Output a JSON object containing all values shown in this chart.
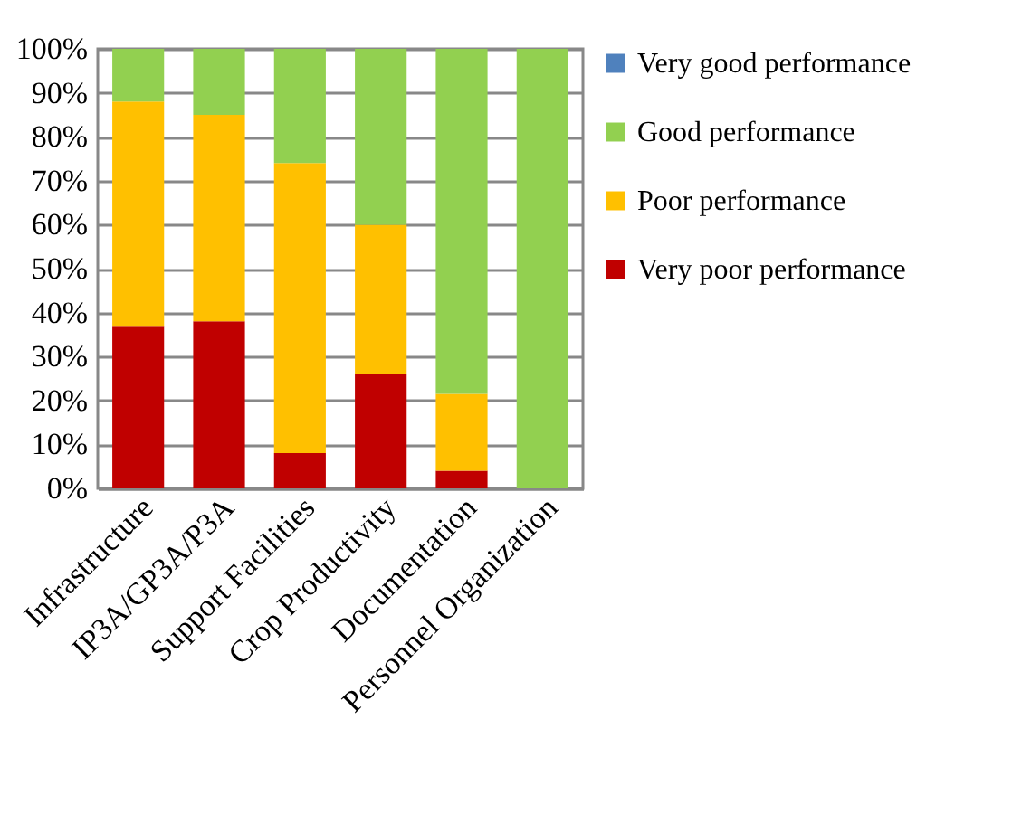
{
  "chart_data": {
    "type": "bar",
    "stacked": true,
    "categories": [
      "Infrastructure",
      "IP3A/GP3A/P3A",
      "Support Facilities",
      "Crop Productivity",
      "Documentation",
      "Personnel Organization"
    ],
    "series": [
      {
        "name": "Very poor performance",
        "color": "#c00000",
        "values": [
          37,
          38,
          8,
          26,
          4,
          0
        ]
      },
      {
        "name": "Poor performance",
        "color": "#ffc000",
        "values": [
          51,
          47,
          66,
          34,
          17.5,
          0
        ]
      },
      {
        "name": "Good performance",
        "color": "#92d050",
        "values": [
          12,
          15,
          26,
          40,
          78.5,
          100
        ]
      },
      {
        "name": "Very good performance",
        "color": "#4f81bd",
        "values": [
          0,
          0,
          0,
          0,
          0,
          0
        ]
      }
    ],
    "ylim": [
      0,
      100
    ],
    "yticks": [
      {
        "value": 0,
        "label": "0%"
      },
      {
        "value": 10,
        "label": "10%"
      },
      {
        "value": 20,
        "label": "20%"
      },
      {
        "value": 30,
        "label": "30%"
      },
      {
        "value": 40,
        "label": "40%"
      },
      {
        "value": 50,
        "label": "50%"
      },
      {
        "value": 60,
        "label": "60%"
      },
      {
        "value": 70,
        "label": "70%"
      },
      {
        "value": 80,
        "label": "80%"
      },
      {
        "value": 90,
        "label": "90%"
      },
      {
        "value": 100,
        "label": "100%"
      }
    ],
    "grid": "y",
    "legend": "right"
  }
}
